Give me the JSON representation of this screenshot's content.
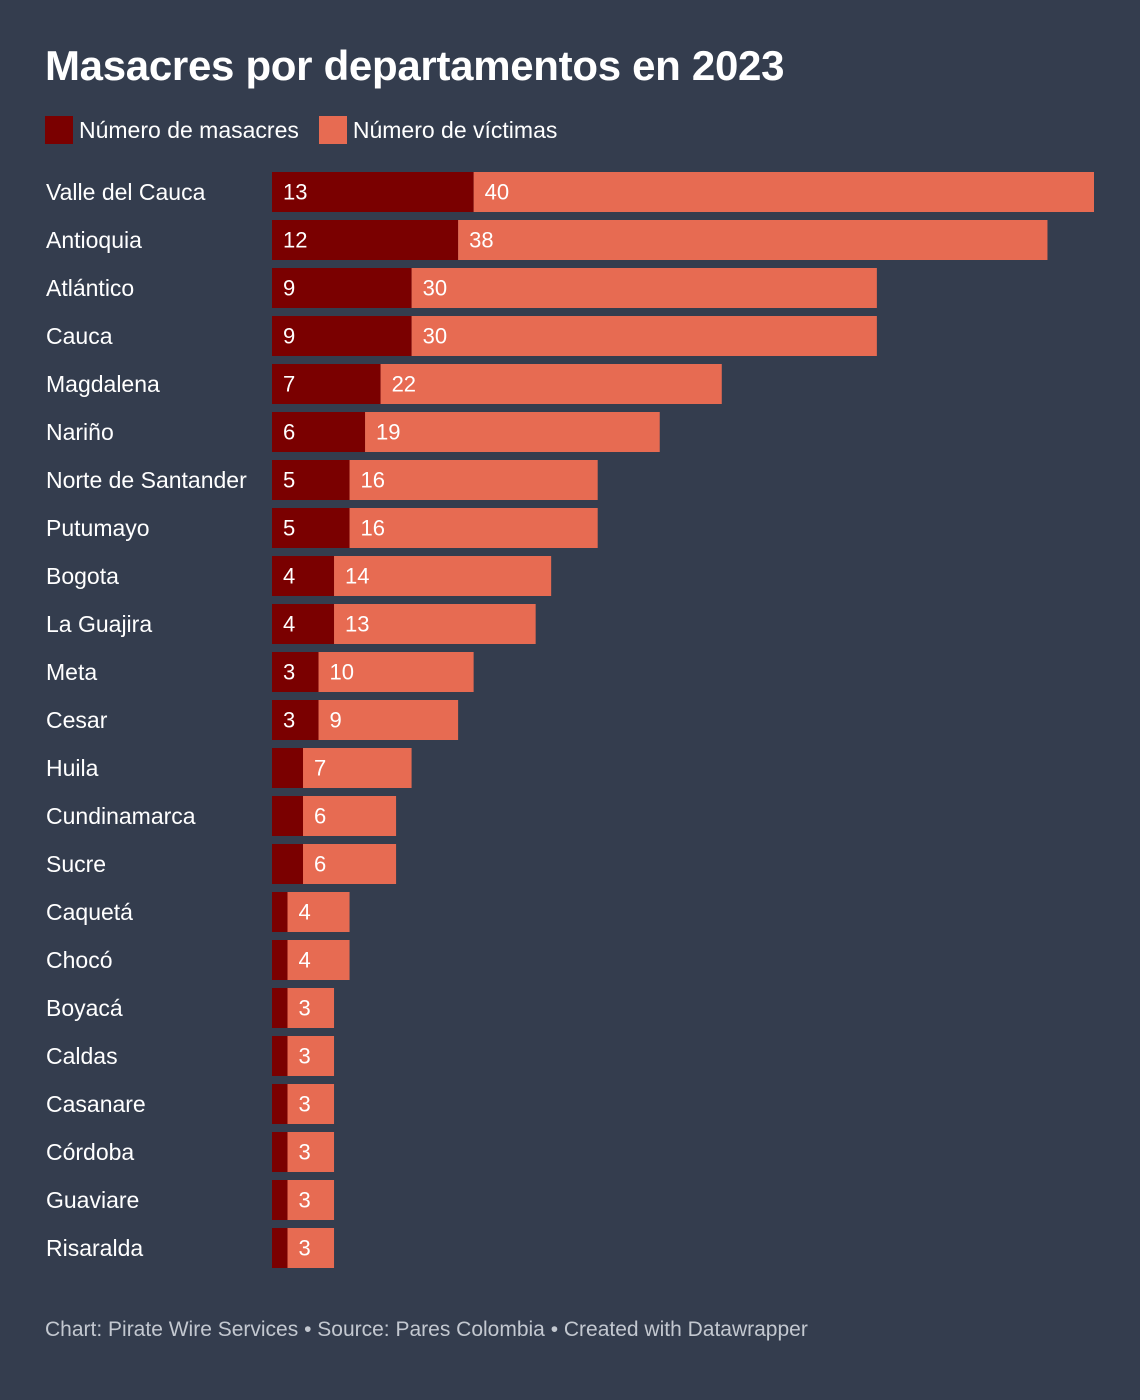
{
  "title": "Masacres por departamentos en 2023",
  "footer": "Chart: Pirate Wire Services • Source: Pares Colombia • Created with Datawrapper",
  "colors": {
    "background": "#343d4e",
    "masacres": "#7a0000",
    "victimas": "#e76b52"
  },
  "chart_data": {
    "type": "bar",
    "orientation": "horizontal",
    "stacked": true,
    "title": "Masacres por departamentos en 2023",
    "legend_position": "top-left",
    "grid": false,
    "xlim": [
      0,
      53
    ],
    "categories": [
      "Valle del Cauca",
      "Antioquia",
      "Atlántico",
      "Cauca",
      "Magdalena",
      "Nariño",
      "Norte de Santander",
      "Putumayo",
      "Bogota",
      "La Guajira",
      "Meta",
      "Cesar",
      "Huila",
      "Cundinamarca",
      "Sucre",
      "Caquetá",
      "Chocó",
      "Boyacá",
      "Caldas",
      "Casanare",
      "Córdoba",
      "Guaviare",
      "Risaralda"
    ],
    "series": [
      {
        "name": "Número de masacres",
        "color": "#7a0000",
        "values": [
          13,
          12,
          9,
          9,
          7,
          6,
          5,
          5,
          4,
          4,
          3,
          3,
          2,
          2,
          2,
          1,
          1,
          1,
          1,
          1,
          1,
          1,
          1
        ],
        "labels": [
          "13",
          "12",
          "9",
          "9",
          "7",
          "6",
          "5",
          "5",
          "4",
          "4",
          "3",
          "3",
          "",
          "",
          "",
          "",
          "",
          "",
          "",
          "",
          "",
          "",
          ""
        ]
      },
      {
        "name": "Número de víctimas",
        "color": "#e76b52",
        "values": [
          40,
          38,
          30,
          30,
          22,
          19,
          16,
          16,
          14,
          13,
          10,
          9,
          7,
          6,
          6,
          4,
          4,
          3,
          3,
          3,
          3,
          3,
          3
        ],
        "labels": [
          "40",
          "38",
          "30",
          "30",
          "22",
          "19",
          "16",
          "16",
          "14",
          "13",
          "10",
          "9",
          "7",
          "6",
          "6",
          "4",
          "4",
          "3",
          "3",
          "3",
          "3",
          "3",
          "3"
        ]
      }
    ]
  }
}
